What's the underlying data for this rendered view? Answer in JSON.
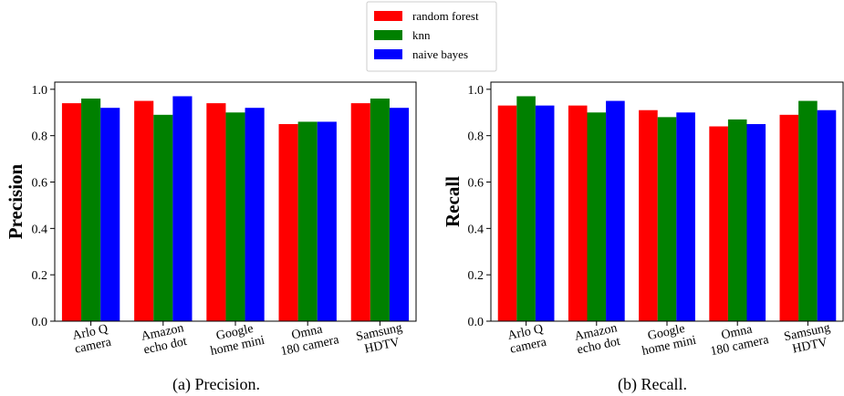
{
  "legend": [
    {
      "label": "random forest",
      "color": "#ff0000"
    },
    {
      "label": "knn",
      "color": "#008000"
    },
    {
      "label": "naive bayes",
      "color": "#0000ff"
    }
  ],
  "chart_data": [
    {
      "type": "bar",
      "ylabel": "Precision",
      "caption": "(a) Precision.",
      "ylim": [
        0,
        1.0
      ],
      "yticks": [
        "0.0",
        "0.2",
        "0.4",
        "0.6",
        "0.8",
        "1.0"
      ],
      "categories": [
        [
          "Arlo Q",
          "camera"
        ],
        [
          "Amazon",
          "echo dot"
        ],
        [
          "Google",
          "home mini"
        ],
        [
          "Omna",
          "180 camera"
        ],
        [
          "Samsung",
          "HDTV"
        ]
      ],
      "series": [
        {
          "name": "random forest",
          "color": "#ff0000",
          "values": [
            0.94,
            0.95,
            0.94,
            0.85,
            0.94
          ]
        },
        {
          "name": "knn",
          "color": "#008000",
          "values": [
            0.96,
            0.89,
            0.9,
            0.86,
            0.96
          ]
        },
        {
          "name": "naive bayes",
          "color": "#0000ff",
          "values": [
            0.92,
            0.97,
            0.92,
            0.86,
            0.92
          ]
        }
      ]
    },
    {
      "type": "bar",
      "ylabel": "Recall",
      "caption": "(b) Recall.",
      "ylim": [
        0,
        1.0
      ],
      "yticks": [
        "0.0",
        "0.2",
        "0.4",
        "0.6",
        "0.8",
        "1.0"
      ],
      "categories": [
        [
          "Arlo Q",
          "camera"
        ],
        [
          "Amazon",
          "echo dot"
        ],
        [
          "Google",
          "home mini"
        ],
        [
          "Omna",
          "180 camera"
        ],
        [
          "Samsung",
          "HDTV"
        ]
      ],
      "series": [
        {
          "name": "random forest",
          "color": "#ff0000",
          "values": [
            0.93,
            0.93,
            0.91,
            0.84,
            0.89
          ]
        },
        {
          "name": "knn",
          "color": "#008000",
          "values": [
            0.97,
            0.9,
            0.88,
            0.87,
            0.95
          ]
        },
        {
          "name": "naive bayes",
          "color": "#0000ff",
          "values": [
            0.93,
            0.95,
            0.9,
            0.85,
            0.91
          ]
        }
      ]
    }
  ]
}
